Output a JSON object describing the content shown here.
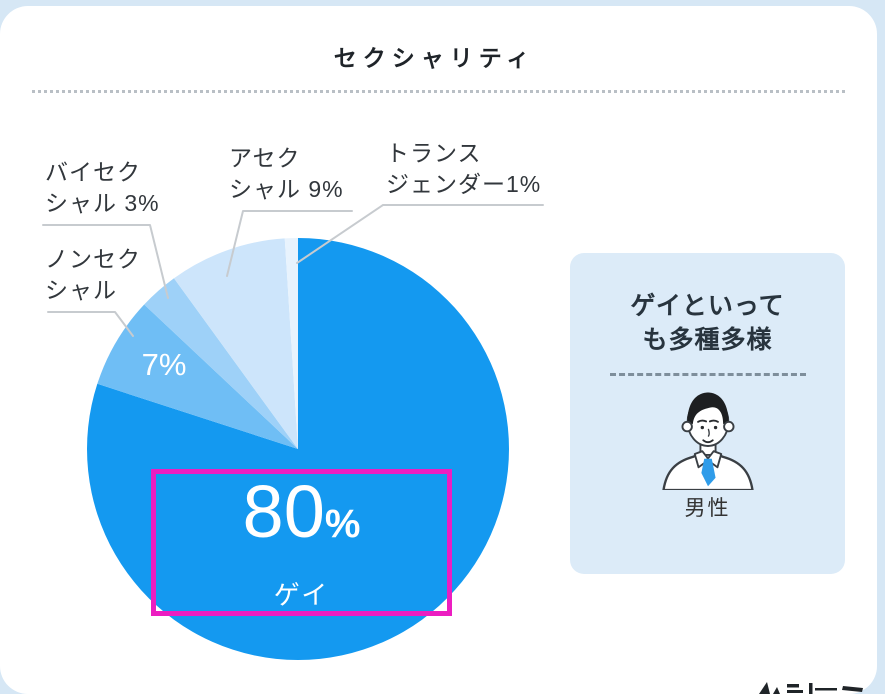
{
  "page": {
    "title": "セクシャリティ"
  },
  "chart_data": {
    "type": "pie",
    "title": "セクシャリティ",
    "categories": [
      "ゲイ",
      "ノンセクシャル",
      "バイセクシャル",
      "アセクシャル",
      "トランスジェンダー"
    ],
    "values": [
      80,
      7,
      3,
      9,
      1
    ],
    "unit": "%",
    "colors": [
      "#1499F0",
      "#6FBEF5",
      "#9ED1F8",
      "#CDE5FB",
      "#E8F3FD"
    ],
    "start_angle": "12-o'clock",
    "direction": "clockwise",
    "legend_position": "none",
    "labels": {
      "gay_value": "80",
      "gay_percent_sign": "%",
      "gay_name": "ゲイ",
      "nonsexual_value": "7%",
      "callout_bisexual": [
        "バイセク",
        "シャル 3%"
      ],
      "callout_nonsexual": [
        "ノンセク",
        "シャル"
      ],
      "callout_asexual": [
        "アセク",
        "シャル 9%"
      ],
      "callout_transgender": [
        "トランス",
        "ジェンダー1%"
      ]
    },
    "highlight_box_color": "#EC1EC1"
  },
  "side_card": {
    "heading_line1": "ゲイといって",
    "heading_line2": "も多種多様",
    "person_label": "男性",
    "background_color": "#DCEBF8",
    "tie_color": "#2F9CE9"
  }
}
